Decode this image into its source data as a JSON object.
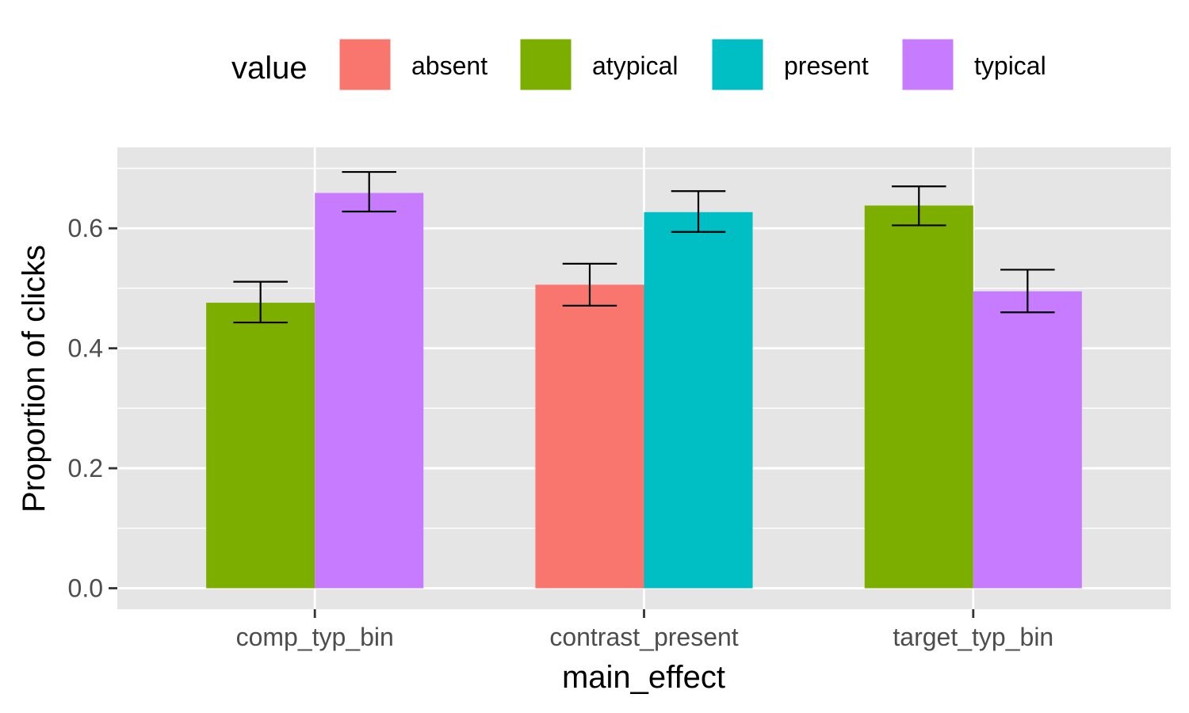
{
  "chart_data": {
    "type": "bar",
    "title": "",
    "xlabel": "main_effect",
    "ylabel": "Proportion of clicks",
    "ylim": [
      -0.035,
      0.735
    ],
    "y_ticks": [
      0.0,
      0.2,
      0.4,
      0.6
    ],
    "y_tick_labels": [
      "0.0",
      "0.2",
      "0.4",
      "0.6"
    ],
    "categories": [
      "comp_typ_bin",
      "contrast_present",
      "target_typ_bin"
    ],
    "legend": {
      "title": "value",
      "position": "top",
      "entries": [
        {
          "label": "absent",
          "color": "#F8766D"
        },
        {
          "label": "atypical",
          "color": "#7CAE00"
        },
        {
          "label": "present",
          "color": "#00BFC4"
        },
        {
          "label": "typical",
          "color": "#C77CFF"
        }
      ]
    },
    "groups": [
      {
        "category": "comp_typ_bin",
        "bars": [
          {
            "value_label": "atypical",
            "value": 0.476,
            "err_low": 0.443,
            "err_high": 0.511
          },
          {
            "value_label": "typical",
            "value": 0.659,
            "err_low": 0.628,
            "err_high": 0.694
          }
        ]
      },
      {
        "category": "contrast_present",
        "bars": [
          {
            "value_label": "absent",
            "value": 0.506,
            "err_low": 0.471,
            "err_high": 0.541
          },
          {
            "value_label": "present",
            "value": 0.627,
            "err_low": 0.594,
            "err_high": 0.662
          }
        ]
      },
      {
        "category": "target_typ_bin",
        "bars": [
          {
            "value_label": "atypical",
            "value": 0.638,
            "err_low": 0.605,
            "err_high": 0.67
          },
          {
            "value_label": "typical",
            "value": 0.495,
            "err_low": 0.46,
            "err_high": 0.531
          }
        ]
      }
    ],
    "grid": true,
    "background_color": "#E5E5E5"
  }
}
